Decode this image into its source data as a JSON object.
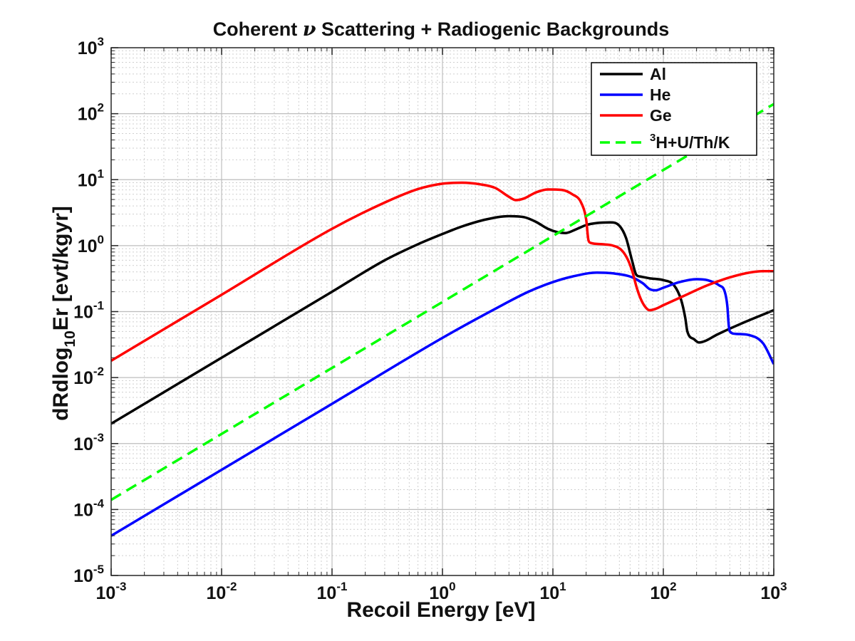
{
  "chart_data": {
    "type": "line",
    "title_prefix": "Coherent ",
    "title_symbol": "ν",
    "title_suffix": " Scattering + Radiogenic Backgrounds",
    "xlabel": "Recoil Energy [eV]",
    "ylabel_main": "dRdlog",
    "ylabel_sub": "10",
    "ylabel_end": "Er [evt/kgyr]",
    "x_scale": "log",
    "y_scale": "log",
    "xlim": [
      0.001,
      1000
    ],
    "ylim": [
      1e-05,
      1000
    ],
    "grid": true,
    "x_ticks": [
      {
        "base": "10",
        "exp": "-3"
      },
      {
        "base": "10",
        "exp": "-2"
      },
      {
        "base": "10",
        "exp": "-1"
      },
      {
        "base": "10",
        "exp": "0"
      },
      {
        "base": "10",
        "exp": "1"
      },
      {
        "base": "10",
        "exp": "2"
      },
      {
        "base": "10",
        "exp": "3"
      }
    ],
    "y_ticks": [
      {
        "base": "10",
        "exp": "-5"
      },
      {
        "base": "10",
        "exp": "-4"
      },
      {
        "base": "10",
        "exp": "-3"
      },
      {
        "base": "10",
        "exp": "-2"
      },
      {
        "base": "10",
        "exp": "-1"
      },
      {
        "base": "10",
        "exp": "0"
      },
      {
        "base": "10",
        "exp": "1"
      },
      {
        "base": "10",
        "exp": "2"
      },
      {
        "base": "10",
        "exp": "3"
      }
    ],
    "legend_position": "top-right",
    "series": [
      {
        "name": "Al",
        "color": "#000000",
        "dash": false,
        "points": [
          [
            0.001,
            0.002
          ],
          [
            0.01,
            0.02
          ],
          [
            0.1,
            0.2
          ],
          [
            0.3,
            0.6
          ],
          [
            0.6,
            1.05
          ],
          [
            1,
            1.5
          ],
          [
            1.5,
            1.95
          ],
          [
            2.5,
            2.5
          ],
          [
            4,
            2.8
          ],
          [
            5.5,
            2.7
          ],
          [
            7,
            2.3
          ],
          [
            9,
            1.8
          ],
          [
            11,
            1.6
          ],
          [
            13,
            1.55
          ],
          [
            16,
            1.75
          ],
          [
            20,
            2.05
          ],
          [
            25,
            2.2
          ],
          [
            33,
            2.25
          ],
          [
            40,
            2.0
          ],
          [
            46,
            1.3
          ],
          [
            52,
            0.6
          ],
          [
            57,
            0.36
          ],
          [
            62,
            0.34
          ],
          [
            75,
            0.32
          ],
          [
            100,
            0.3
          ],
          [
            125,
            0.25
          ],
          [
            145,
            0.15
          ],
          [
            158,
            0.08
          ],
          [
            165,
            0.05
          ],
          [
            190,
            0.038
          ],
          [
            210,
            0.034
          ],
          [
            240,
            0.036
          ],
          [
            300,
            0.044
          ],
          [
            500,
            0.065
          ],
          [
            1000,
            0.105
          ]
        ]
      },
      {
        "name": "He",
        "color": "#0000ff",
        "dash": false,
        "points": [
          [
            0.001,
            4e-05
          ],
          [
            0.01,
            0.0004
          ],
          [
            0.1,
            0.004
          ],
          [
            1,
            0.04
          ],
          [
            3,
            0.11
          ],
          [
            6,
            0.2
          ],
          [
            10,
            0.28
          ],
          [
            15,
            0.34
          ],
          [
            25,
            0.39
          ],
          [
            35,
            0.38
          ],
          [
            50,
            0.34
          ],
          [
            65,
            0.27
          ],
          [
            75,
            0.22
          ],
          [
            85,
            0.21
          ],
          [
            100,
            0.23
          ],
          [
            140,
            0.28
          ],
          [
            200,
            0.31
          ],
          [
            250,
            0.3
          ],
          [
            320,
            0.25
          ],
          [
            360,
            0.2
          ],
          [
            380,
            0.12
          ],
          [
            390,
            0.065
          ],
          [
            400,
            0.05
          ],
          [
            450,
            0.046
          ],
          [
            600,
            0.044
          ],
          [
            800,
            0.033
          ],
          [
            1000,
            0.016
          ]
        ]
      },
      {
        "name": "Ge",
        "color": "#ff0000",
        "dash": false,
        "points": [
          [
            0.001,
            0.018
          ],
          [
            0.01,
            0.18
          ],
          [
            0.1,
            1.8
          ],
          [
            0.3,
            4.5
          ],
          [
            0.6,
            7.2
          ],
          [
            1,
            8.7
          ],
          [
            1.5,
            9.0
          ],
          [
            2.2,
            8.5
          ],
          [
            3,
            7.5
          ],
          [
            4,
            5.5
          ],
          [
            4.6,
            4.9
          ],
          [
            5.5,
            5.2
          ],
          [
            7,
            6.4
          ],
          [
            9,
            7.1
          ],
          [
            12,
            7.0
          ],
          [
            15,
            6.0
          ],
          [
            18,
            4.5
          ],
          [
            20,
            2.5
          ],
          [
            21,
            1.2
          ],
          [
            22,
            1.1
          ],
          [
            28,
            1.05
          ],
          [
            35,
            1.0
          ],
          [
            42,
            0.85
          ],
          [
            48,
            0.6
          ],
          [
            53,
            0.38
          ],
          [
            57,
            0.24
          ],
          [
            62,
            0.16
          ],
          [
            68,
            0.12
          ],
          [
            75,
            0.105
          ],
          [
            85,
            0.11
          ],
          [
            100,
            0.125
          ],
          [
            150,
            0.17
          ],
          [
            250,
            0.25
          ],
          [
            400,
            0.33
          ],
          [
            600,
            0.39
          ],
          [
            800,
            0.41
          ],
          [
            1000,
            0.41
          ]
        ]
      },
      {
        "name_sup": "3",
        "name": "H+U/Th/K",
        "color": "#00ff00",
        "dash": true,
        "points": [
          [
            0.001,
            0.00014
          ],
          [
            1000,
            140
          ]
        ]
      }
    ]
  }
}
